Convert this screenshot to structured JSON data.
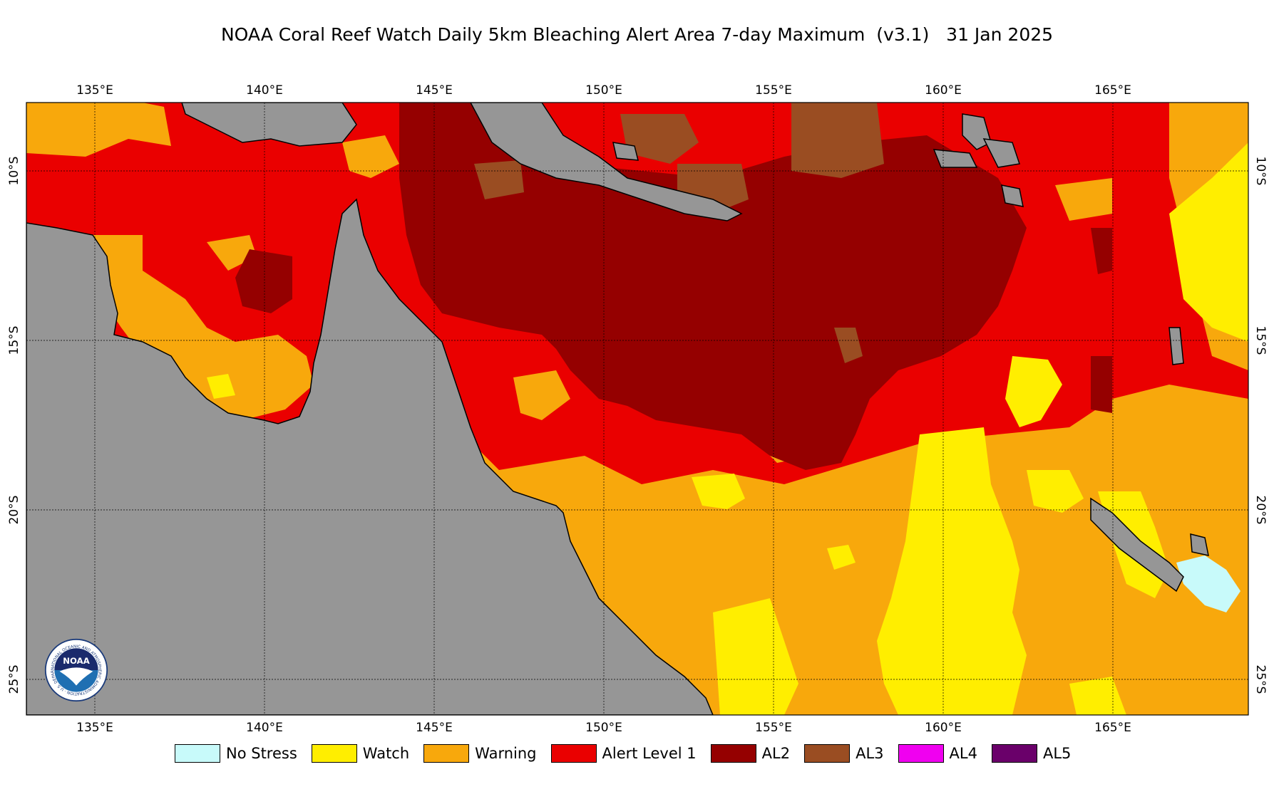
{
  "title": "NOAA Coral Reef Watch Daily 5km Bleaching Alert Area 7-day Maximum  (v3.1)   31 Jan 2025",
  "lon_ticks": [
    "135°E",
    "140°E",
    "145°E",
    "150°E",
    "155°E",
    "160°E",
    "165°E"
  ],
  "lat_ticks": [
    "10°S",
    "15°S",
    "20°S",
    "25°S"
  ],
  "legend": [
    {
      "label": "No Stress",
      "color": "#c8fafa"
    },
    {
      "label": "Watch",
      "color": "#ffee00"
    },
    {
      "label": "Warning",
      "color": "#f8a80c"
    },
    {
      "label": "Alert Level 1",
      "color": "#ea0000"
    },
    {
      "label": "AL2",
      "color": "#950000"
    },
    {
      "label": "AL3",
      "color": "#9a4d22"
    },
    {
      "label": "AL4",
      "color": "#f000f0"
    },
    {
      "label": "AL5",
      "color": "#6a006a"
    }
  ],
  "colors": {
    "land": "#969696",
    "coastline": "#000000",
    "grid": "#000000"
  },
  "logo": {
    "text": "NOAA",
    "ring_text": "NATIONAL OCEANIC AND ATMOSPHERIC ADMINISTRATION · U.S. DEPARTMENT OF COMMERCE"
  }
}
